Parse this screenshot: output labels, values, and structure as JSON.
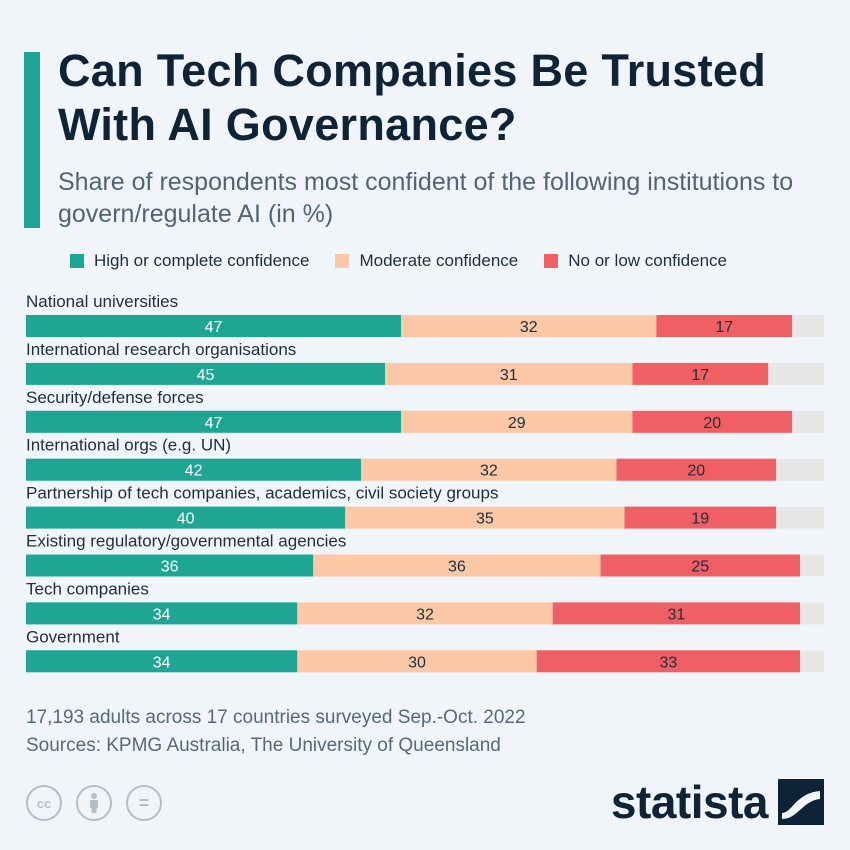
{
  "title": "Can Tech Companies Be Trusted With AI Governance?",
  "subtitle": "Share of respondents most confident of the following institutions to govern/regulate AI (in %)",
  "legend": [
    {
      "label": "High or complete confidence",
      "color": "#1fa594"
    },
    {
      "label": "Moderate confidence",
      "color": "#fcc8a8"
    },
    {
      "label": "No or low confidence",
      "color": "#f05f63"
    }
  ],
  "chart_data": {
    "type": "bar",
    "orientation": "horizontal",
    "stacked": true,
    "xlim": [
      0,
      100
    ],
    "remainder_color": "#e6e6e6",
    "categories": [
      "National universities",
      "International research organisations",
      "Security/defense forces",
      "International orgs (e.g. UN)",
      "Partnership of tech companies, academics, civil society groups",
      "Existing regulatory/governmental agencies",
      "Tech companies",
      "Government"
    ],
    "series": [
      {
        "name": "High or complete confidence",
        "color": "#1fa594",
        "label_color": "#ffffff",
        "values": [
          47,
          45,
          47,
          42,
          40,
          36,
          34,
          34
        ]
      },
      {
        "name": "Moderate confidence",
        "color": "#fcc8a8",
        "label_color": "#1e2e3c",
        "values": [
          32,
          31,
          29,
          32,
          35,
          36,
          32,
          30
        ]
      },
      {
        "name": "No or low confidence",
        "color": "#f05f63",
        "label_color": "#1e2e3c",
        "values": [
          17,
          17,
          20,
          20,
          19,
          25,
          31,
          33
        ]
      }
    ]
  },
  "footnote": {
    "line1": "17,193 adults across 17 countries surveyed Sep.-Oct. 2022",
    "line2": "Sources: KPMG Australia, The University of Queensland"
  },
  "license_icons": [
    "creative-commons-icon",
    "attribution-icon",
    "no-derivatives-icon"
  ],
  "license_glyphs": [
    "cc",
    "",
    "="
  ],
  "logo": {
    "text": "statista"
  }
}
